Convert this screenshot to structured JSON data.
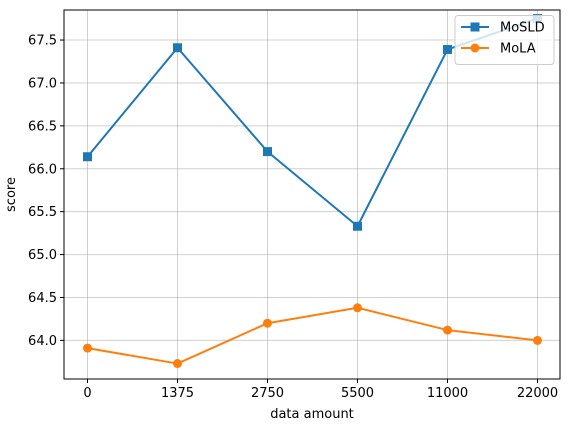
{
  "chart_data": {
    "type": "line",
    "title": "",
    "xlabel": "data amount",
    "ylabel": "score",
    "categories": [
      "0",
      "1375",
      "2750",
      "5500",
      "11000",
      "22000"
    ],
    "ylim": [
      63.55,
      67.85
    ],
    "yticks": [
      64.0,
      64.5,
      65.0,
      65.5,
      66.0,
      66.5,
      67.0,
      67.5
    ],
    "ytick_labels": [
      "64.0",
      "64.5",
      "65.0",
      "65.5",
      "66.0",
      "66.5",
      "67.0",
      "67.5"
    ],
    "grid": true,
    "legend_position": "top-right",
    "series": [
      {
        "name": "MoSLD",
        "marker": "square",
        "color": "#1f77b4",
        "values": [
          66.14,
          67.41,
          66.2,
          65.33,
          67.39,
          67.75
        ]
      },
      {
        "name": "MoLA",
        "marker": "circle",
        "color": "#ff7f0e",
        "values": [
          63.91,
          63.73,
          64.2,
          64.38,
          64.12,
          64.0
        ]
      }
    ]
  }
}
